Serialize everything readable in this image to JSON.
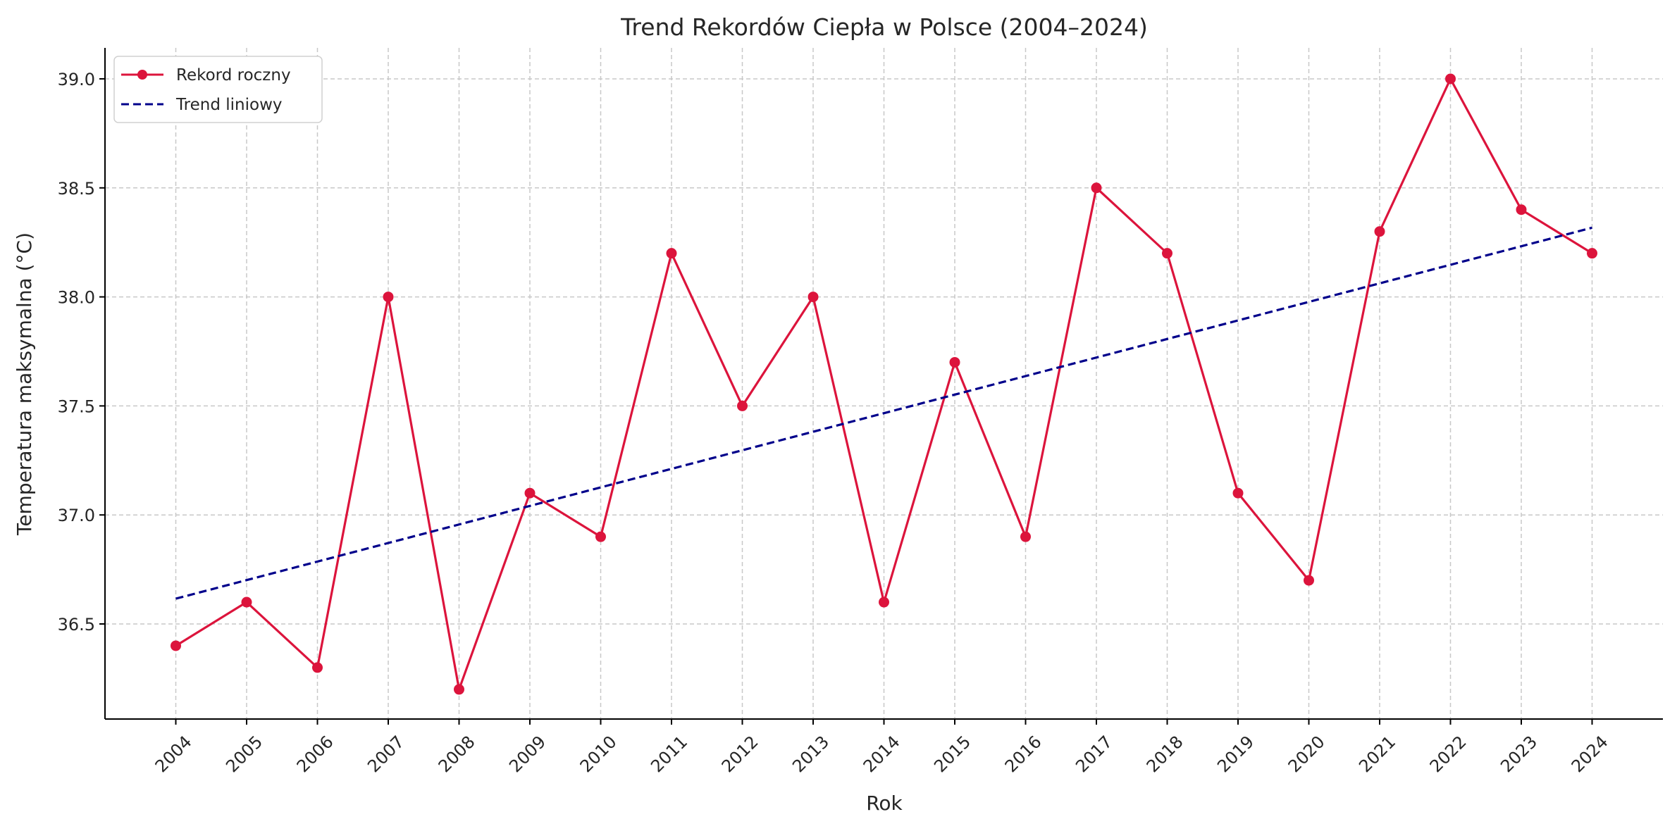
{
  "chart_data": {
    "type": "line",
    "title": "Trend Rekordów Ciepła w Polsce (2004–2024)",
    "xlabel": "Rok",
    "ylabel": "Temperatura maksymalna (°C)",
    "x": [
      2004,
      2005,
      2006,
      2007,
      2008,
      2009,
      2010,
      2011,
      2012,
      2013,
      2014,
      2015,
      2016,
      2017,
      2018,
      2019,
      2020,
      2021,
      2022,
      2023,
      2024
    ],
    "series": [
      {
        "name": "Rekord roczny",
        "color": "#dc143c",
        "style": "solid-with-markers",
        "values": [
          36.4,
          36.6,
          36.3,
          38.0,
          36.2,
          37.1,
          36.9,
          38.2,
          37.5,
          38.0,
          36.6,
          37.7,
          36.9,
          38.5,
          38.2,
          37.1,
          36.7,
          38.3,
          39.0,
          38.4,
          38.2
        ]
      },
      {
        "name": "Trend liniowy",
        "color": "#00008b",
        "style": "dashed",
        "fit": "linear regression of Rekord roczny"
      }
    ],
    "yticks": [
      "36.5",
      "37.0",
      "37.5",
      "38.0",
      "38.5",
      "39.0"
    ],
    "xlim": [
      2003,
      2025
    ],
    "ylim": [
      36.064,
      39.142
    ],
    "grid": true,
    "legend": "top-left"
  }
}
